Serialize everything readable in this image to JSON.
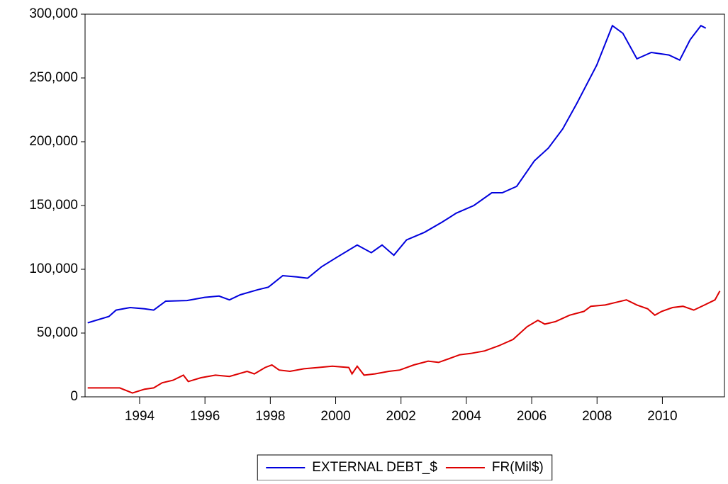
{
  "chart_data": {
    "type": "line",
    "ylim": [
      0,
      300000
    ],
    "yticks": [
      {
        "value": 0,
        "label": "0"
      },
      {
        "value": 50000,
        "label": "50,000"
      },
      {
        "value": 100000,
        "label": "100,000"
      },
      {
        "value": 150000,
        "label": "150,000"
      },
      {
        "value": 200000,
        "label": "200,000"
      },
      {
        "value": 250000,
        "label": "250,000"
      },
      {
        "value": 300000,
        "label": "300,000"
      }
    ],
    "xlim": [
      1992.83,
      2012.4
    ],
    "xticks": [
      {
        "value": 1994.5,
        "label": "1994"
      },
      {
        "value": 1996.5,
        "label": "1996"
      },
      {
        "value": 1998.5,
        "label": "1998"
      },
      {
        "value": 2000.5,
        "label": "2000"
      },
      {
        "value": 2002.5,
        "label": "2002"
      },
      {
        "value": 2004.5,
        "label": "2004"
      },
      {
        "value": 2006.5,
        "label": "2006"
      },
      {
        "value": 2008.5,
        "label": "2008"
      },
      {
        "value": 2010.5,
        "label": "2010"
      }
    ],
    "legend": "bottom",
    "series": [
      {
        "name": "EXTERNAL DEBT_$",
        "color": "#0000dd",
        "x": [
          1992.91,
          1993.56,
          1993.78,
          1994.21,
          1994.65,
          1994.93,
          1995.3,
          1995.95,
          1996.49,
          1996.93,
          1997.25,
          1997.58,
          1998.12,
          1998.44,
          1998.88,
          1999.31,
          1999.64,
          2000.07,
          2000.51,
          2001.16,
          2001.59,
          2001.92,
          2002.28,
          2002.67,
          2003.22,
          2003.76,
          2004.19,
          2004.73,
          2005.28,
          2005.6,
          2006.04,
          2006.58,
          2007.01,
          2007.45,
          2007.88,
          2008.49,
          2008.97,
          2009.29,
          2009.72,
          2010.16,
          2010.7,
          2011.03,
          2011.35,
          2011.68,
          2011.83
        ],
        "values": [
          58000,
          63000,
          68000,
          70000,
          69000,
          68000,
          75000,
          75500,
          78000,
          79000,
          76000,
          80000,
          84000,
          86000,
          95000,
          94000,
          93000,
          102000,
          109000,
          119000,
          113000,
          119000,
          111000,
          123000,
          129000,
          137000,
          144000,
          150000,
          160000,
          160000,
          165000,
          185000,
          195000,
          210000,
          230000,
          260000,
          291000,
          285000,
          265000,
          270000,
          268000,
          264000,
          280000,
          291000,
          289000
        ]
      },
      {
        "name": "FR(Mil$)",
        "color": "#dd0000",
        "x": [
          1992.91,
          1993.35,
          1993.89,
          1994.28,
          1994.65,
          1994.93,
          1995.19,
          1995.52,
          1995.84,
          1995.99,
          1996.38,
          1996.82,
          1997.25,
          1997.79,
          1998.01,
          1998.34,
          1998.55,
          1998.77,
          1999.1,
          1999.53,
          1999.96,
          2000.4,
          2000.9,
          2001.0,
          2001.16,
          2001.37,
          2001.7,
          2002.13,
          2002.46,
          2002.89,
          2003.33,
          2003.65,
          2003.98,
          2004.3,
          2004.63,
          2005.06,
          2005.49,
          2005.93,
          2006.36,
          2006.69,
          2006.9,
          2007.23,
          2007.66,
          2008.1,
          2008.31,
          2008.75,
          2009.07,
          2009.4,
          2009.72,
          2010.05,
          2010.27,
          2010.48,
          2010.81,
          2011.13,
          2011.46,
          2011.79,
          2012.11,
          2012.26
        ],
        "values": [
          7000,
          7000,
          7000,
          3000,
          6000,
          7000,
          11000,
          13000,
          17000,
          12000,
          15000,
          17000,
          16000,
          20000,
          18000,
          23000,
          25000,
          21000,
          20000,
          22000,
          23000,
          24000,
          23000,
          18000,
          24000,
          17000,
          18000,
          20000,
          21000,
          25000,
          28000,
          27000,
          30000,
          33000,
          34000,
          36000,
          40000,
          45000,
          55000,
          60000,
          57000,
          59000,
          64000,
          67000,
          71000,
          72000,
          74000,
          76000,
          72000,
          69000,
          64000,
          67000,
          70000,
          71000,
          68000,
          72000,
          76000,
          83000
        ]
      }
    ]
  }
}
